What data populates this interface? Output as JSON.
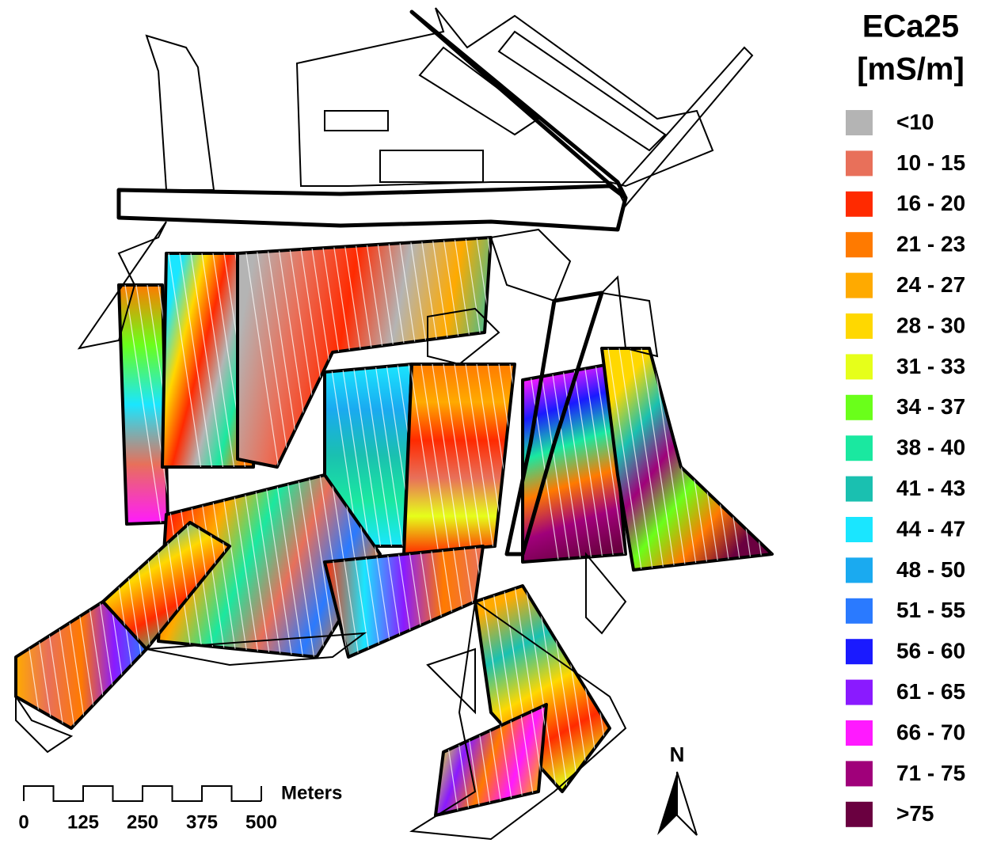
{
  "legend": {
    "title": [
      "ECa25",
      "[mS/m]"
    ],
    "items": [
      {
        "label": "<10",
        "color": "#b4b4b4"
      },
      {
        "label": "10 - 15",
        "color": "#e8705a"
      },
      {
        "label": "16 - 20",
        "color": "#ff2a00"
      },
      {
        "label": "21 - 23",
        "color": "#ff7a00"
      },
      {
        "label": "24 - 27",
        "color": "#ffaa00"
      },
      {
        "label": "28 - 30",
        "color": "#ffd800"
      },
      {
        "label": "31 - 33",
        "color": "#e6ff1a"
      },
      {
        "label": "34 - 37",
        "color": "#6aff1a"
      },
      {
        "label": "38 - 40",
        "color": "#1ae8a0"
      },
      {
        "label": "41 - 43",
        "color": "#1ac0b0"
      },
      {
        "label": "44 - 47",
        "color": "#1ae6ff"
      },
      {
        "label": "48 - 50",
        "color": "#1aaaf0"
      },
      {
        "label": "51 - 55",
        "color": "#2a7aff"
      },
      {
        "label": "56 - 60",
        "color": "#1a1aff"
      },
      {
        "label": "61 - 65",
        "color": "#8a1aff"
      },
      {
        "label": "66 - 70",
        "color": "#ff1aff"
      },
      {
        "label": "71 - 75",
        "color": "#a0007a"
      },
      {
        "label": ">75",
        "color": "#6a0040"
      }
    ]
  },
  "scale": {
    "ticks": [
      0,
      125,
      250,
      375,
      500
    ],
    "unit": "Meters"
  },
  "north": "N"
}
